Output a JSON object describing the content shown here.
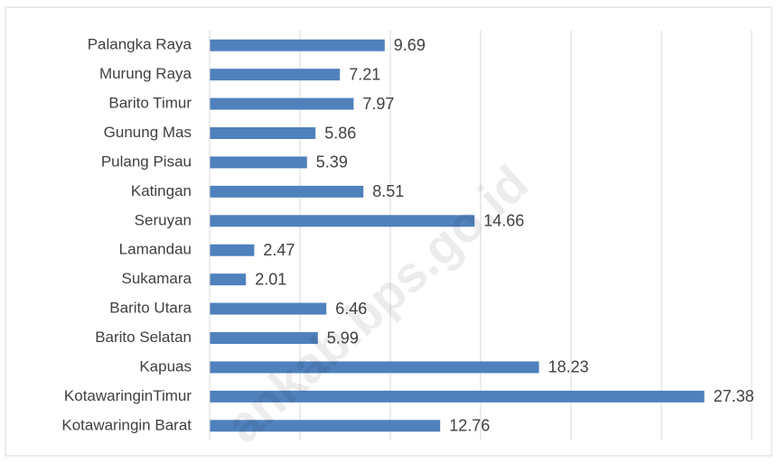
{
  "chart_data": {
    "type": "bar",
    "orientation": "horizontal",
    "categories": [
      "Palangka Raya",
      "Murung Raya",
      "Barito Timur",
      "Gunung Mas",
      "Pulang Pisau",
      "Katingan",
      "Seruyan",
      "Lamandau",
      "Sukamara",
      "Barito Utara",
      "Barito Selatan",
      "Kapuas",
      "KotawaringinTimur",
      "Kotawaringin Barat"
    ],
    "values": [
      9.69,
      7.21,
      7.97,
      5.86,
      5.39,
      8.51,
      14.66,
      2.47,
      2.01,
      6.46,
      5.99,
      18.23,
      27.38,
      12.76
    ],
    "color": "#4f81bd",
    "xlim": [
      0,
      30
    ],
    "xticks": [
      0,
      5,
      10,
      15,
      20,
      25,
      30
    ],
    "grid": true,
    "watermark": "ankab.bps.go.id"
  }
}
